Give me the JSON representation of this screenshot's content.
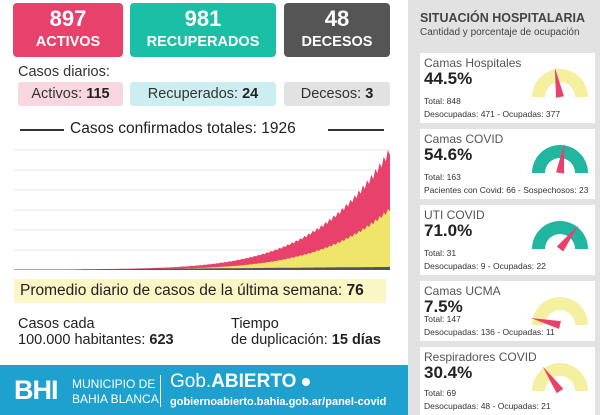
{
  "kpis": [
    {
      "value": "897",
      "label": "ACTIVOS",
      "color": "#e8416b"
    },
    {
      "value": "981",
      "label": "RECUPERADOS",
      "color": "#1bbfa6"
    },
    {
      "value": "48",
      "label": "DECESOS",
      "color": "#555555"
    }
  ],
  "daily": {
    "title": "Casos diarios:",
    "activos": {
      "label": "Activos:",
      "value": "115"
    },
    "recuperados": {
      "label": "Recuperados:",
      "value": "24"
    },
    "decesos": {
      "label": "Decesos:",
      "value": "3"
    }
  },
  "chart_title": "Casos confirmados totales: 1926",
  "avg": {
    "label": "Promedio diario de casos de la última semana:",
    "value": "76"
  },
  "casos_cada": {
    "line1": "Casos cada",
    "line2": "100.000 habitantes:",
    "value": "623"
  },
  "tiempo": {
    "line1": "Tiempo",
    "line2": "de duplicación:",
    "value": "15 días"
  },
  "footer": {
    "bh": "BHI",
    "municipio1": "MUNICIPIO DE",
    "municipio2": "BAHIA BLANCA",
    "gob1": "Gob.",
    "gob2": "ABIERTO",
    "url": "gobiernoabierto.bahia.gob.ar/panel-covid"
  },
  "panel": {
    "title": "SITUACIÓN HOSPITALARIA",
    "subtitle": "Cantidad y porcentaje de ocupación",
    "cards": [
      {
        "name": "Camas Hospitales",
        "pct": "44.5%",
        "value": 44.5,
        "total": "Total: 848",
        "detail": "Desocupadas: 471 - Ocupadas: 377",
        "color": "#f5f0a0"
      },
      {
        "name": "Camas COVID",
        "pct": "54.6%",
        "value": 54.6,
        "total": "Total: 163",
        "detail": "Pacientes con Covid: 66 - Sospechosos: 23",
        "color": "#22b5a0"
      },
      {
        "name": "UTI COVID",
        "pct": "71.0%",
        "value": 71.0,
        "total": "Total: 31",
        "detail": "Desocupadas: 9 - Ocupadas: 22",
        "color": "#22b5a0"
      },
      {
        "name": "Camas UCMA",
        "pct": "7.5%",
        "value": 7.5,
        "total": "Total: 147",
        "detail": "Desocupadas: 136 - Ocupadas: 11",
        "color": "#f5f0a0"
      },
      {
        "name": "Respiradores COVID",
        "pct": "30.4%",
        "value": 30.4,
        "total": "Total: 69",
        "detail": "Desocupadas: 48 - Ocupadas: 21",
        "color": "#f5f0a0"
      }
    ]
  },
  "chart_data": {
    "type": "area",
    "title": "Casos confirmados totales: 1926",
    "total": 1926,
    "series": [
      {
        "name": "Decesos",
        "color": "#555555",
        "value": 48
      },
      {
        "name": "Recuperados",
        "color": "#e8e26a",
        "value": 981
      },
      {
        "name": "Activos",
        "color": "#e8416b",
        "value": 897
      }
    ],
    "x_days": 180
  }
}
